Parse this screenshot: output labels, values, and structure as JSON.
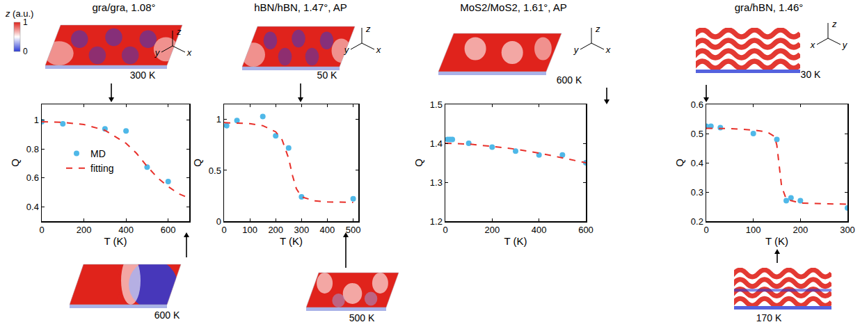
{
  "chart_data": [
    {
      "type": "scatter",
      "title": "gra/gra, 1.08°",
      "x_label": "T (K)",
      "y_label": "Q",
      "xlim": [
        0,
        700
      ],
      "xticks": [
        0,
        200,
        400,
        600
      ],
      "ylim": [
        0.3,
        1.11
      ],
      "yticks": [
        0.4,
        0.6,
        0.8,
        1
      ],
      "legend": "left",
      "series": [
        {
          "name": "MD",
          "type": "scatter",
          "marker": "circle",
          "color": "#4fb8e8",
          "x": [
            0,
            100,
            300,
            400,
            500,
            600
          ],
          "values": [
            0.99,
            0.975,
            0.94,
            0.925,
            0.675,
            0.575
          ]
        },
        {
          "name": "fitting",
          "type": "line",
          "line_style": "dashed",
          "color": "#e8302a",
          "x": [
            0,
            100,
            200,
            300,
            400,
            450,
            500,
            550,
            600,
            650,
            700
          ],
          "values": [
            0.99,
            0.985,
            0.97,
            0.93,
            0.84,
            0.77,
            0.68,
            0.6,
            0.54,
            0.49,
            0.46
          ]
        }
      ],
      "snapshots": [
        "300 K",
        "600 K"
      ]
    },
    {
      "type": "scatter",
      "title": "hBN/hBN, 1.47°, AP",
      "x_label": "T (K)",
      "y_label": "Q",
      "xlim": [
        0,
        520
      ],
      "xticks": [
        0,
        100,
        200,
        300,
        400,
        500
      ],
      "ylim": [
        0,
        1.15
      ],
      "yticks": [
        0,
        0.5,
        1
      ],
      "series": [
        {
          "name": "MD",
          "type": "scatter",
          "marker": "circle",
          "color": "#4fb8e8",
          "x": [
            10,
            50,
            150,
            200,
            250,
            300,
            500
          ],
          "values": [
            0.94,
            0.99,
            1.03,
            0.84,
            0.72,
            0.24,
            0.22
          ]
        },
        {
          "name": "fitting",
          "type": "line",
          "line_style": "dashed",
          "color": "#e8302a",
          "x": [
            0,
            100,
            150,
            200,
            225,
            250,
            265,
            280,
            300,
            350,
            400,
            500
          ],
          "values": [
            0.97,
            0.96,
            0.94,
            0.88,
            0.8,
            0.62,
            0.45,
            0.32,
            0.24,
            0.2,
            0.19,
            0.185
          ]
        }
      ],
      "snapshots": [
        "50 K",
        "500 K"
      ]
    },
    {
      "type": "scatter",
      "title": "MoS2/MoS2, 1.61°, AP",
      "x_label": "T (K)",
      "y_label": "Q",
      "xlim": [
        0,
        600
      ],
      "xticks": [
        0,
        200,
        400,
        600
      ],
      "ylim": [
        1.2,
        1.5
      ],
      "yticks": [
        1.2,
        1.3,
        1.4,
        1.5
      ],
      "series": [
        {
          "name": "MD",
          "type": "scatter",
          "marker": "circle",
          "color": "#4fb8e8",
          "x": [
            10,
            20,
            30,
            100,
            200,
            300,
            400,
            500,
            600
          ],
          "values": [
            1.41,
            1.41,
            1.41,
            1.4,
            1.39,
            1.38,
            1.37,
            1.37,
            1.35
          ]
        },
        {
          "name": "fitting",
          "type": "line",
          "line_style": "dashed",
          "color": "#e8302a",
          "x": [
            0,
            100,
            200,
            300,
            400,
            500,
            600
          ],
          "values": [
            1.4,
            1.398,
            1.392,
            1.385,
            1.375,
            1.363,
            1.35
          ]
        }
      ],
      "snapshots": [
        "600 K"
      ]
    },
    {
      "type": "scatter",
      "title": "gra/hBN, 1.46°",
      "x_label": "T (K)",
      "y_label": "Q",
      "xlim": [
        0,
        300
      ],
      "xticks": [
        0,
        100,
        200,
        300
      ],
      "ylim": [
        0.2,
        0.6
      ],
      "yticks": [
        0.2,
        0.3,
        0.4,
        0.5,
        0.6
      ],
      "series": [
        {
          "name": "MD",
          "type": "scatter",
          "marker": "circle",
          "color": "#4fb8e8",
          "x": [
            0,
            10,
            30,
            100,
            150,
            170,
            180,
            200,
            300
          ],
          "values": [
            0.525,
            0.525,
            0.52,
            0.5,
            0.48,
            0.27,
            0.28,
            0.27,
            0.245
          ]
        },
        {
          "name": "fitting",
          "type": "line",
          "line_style": "dashed",
          "color": "#e8302a",
          "x": [
            0,
            50,
            100,
            130,
            145,
            150,
            155,
            160,
            170,
            200,
            300
          ],
          "values": [
            0.518,
            0.517,
            0.512,
            0.505,
            0.49,
            0.46,
            0.39,
            0.32,
            0.275,
            0.262,
            0.258
          ]
        }
      ],
      "snapshots": [
        "30 K",
        "170 K"
      ]
    }
  ],
  "colorbar": {
    "title": "z (a.u.)",
    "range": [
      0,
      1
    ],
    "ticks": [
      0,
      1
    ],
    "colors": [
      "#2b3bd6",
      "#ffffff",
      "#e0231c"
    ]
  },
  "axis_labels": [
    "x",
    "y",
    "z"
  ]
}
